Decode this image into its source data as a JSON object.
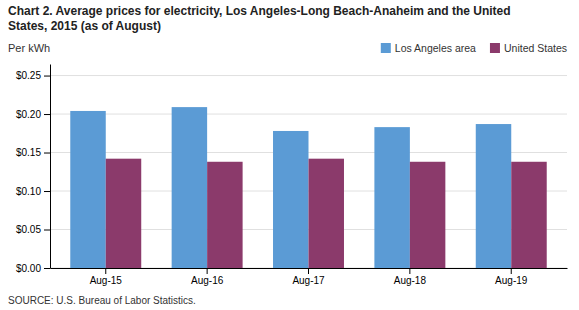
{
  "chart_data": {
    "type": "bar",
    "title": "Chart 2. Average prices for electricity, Los Angeles-Long Beach-Anaheim and the United",
    "subtitle": "States, 2015  (as of August)",
    "ylabel": "Per kWh",
    "source": "SOURCE: U.S. Bureau of Labor Statistics.",
    "categories": [
      "Aug-15",
      "Aug-16",
      "Aug-17",
      "Aug-18",
      "Aug-19"
    ],
    "series": [
      {
        "name": "Los Angeles area",
        "color": "#5B9BD5",
        "values": [
          0.204,
          0.209,
          0.178,
          0.183,
          0.187
        ]
      },
      {
        "name": "United States",
        "color": "#8B3A6B",
        "values": [
          0.142,
          0.138,
          0.142,
          0.138,
          0.138
        ]
      }
    ],
    "ylim": [
      0.0,
      0.265
    ],
    "yticks": [
      {
        "value": 0.0,
        "label": "$0.00"
      },
      {
        "value": 0.05,
        "label": "$0.05"
      },
      {
        "value": 0.1,
        "label": "$0.10"
      },
      {
        "value": 0.15,
        "label": "$0.15"
      },
      {
        "value": 0.2,
        "label": "$0.20"
      },
      {
        "value": 0.25,
        "label": "$0.25"
      }
    ],
    "grid": true,
    "legend": "upper right"
  }
}
